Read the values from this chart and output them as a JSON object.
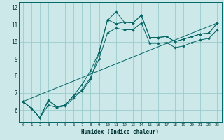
{
  "xlabel": "Humidex (Indice chaleur)",
  "background_color": "#cce8e8",
  "grid_color": "#99cccc",
  "line_color": "#006666",
  "xlim": [
    -0.5,
    23.5
  ],
  "ylim": [
    5.3,
    12.3
  ],
  "x_ticks": [
    0,
    1,
    2,
    3,
    4,
    5,
    6,
    7,
    8,
    9,
    10,
    11,
    12,
    13,
    14,
    15,
    16,
    17,
    18,
    19,
    20,
    21,
    22,
    23
  ],
  "y_ticks": [
    6,
    7,
    8,
    9,
    10,
    11,
    12
  ],
  "line1": [
    6.5,
    6.1,
    5.55,
    6.6,
    6.2,
    6.3,
    6.85,
    7.5,
    8.3,
    9.4,
    11.3,
    11.05,
    11.15,
    11.1,
    11.55,
    10.25,
    10.25,
    10.3,
    10.0,
    10.15,
    10.3,
    10.45,
    10.5,
    11.1
  ],
  "line2": [
    6.5,
    6.1,
    5.55,
    6.55,
    6.2,
    6.3,
    6.85,
    7.1,
    7.8,
    9.35,
    11.25,
    11.75,
    11.15,
    11.1,
    11.55,
    10.25,
    10.25,
    10.3,
    10.0,
    10.15,
    10.3,
    10.45,
    10.5,
    11.1
  ],
  "line3": [
    6.5,
    6.1,
    5.55,
    6.3,
    6.15,
    6.25,
    6.7,
    7.2,
    7.9,
    9.0,
    10.5,
    10.8,
    10.7,
    10.7,
    11.1,
    9.9,
    9.9,
    9.95,
    9.65,
    9.75,
    9.95,
    10.1,
    10.2,
    10.7
  ],
  "line4_x": [
    0,
    23
  ],
  "line4_y": [
    6.5,
    11.1
  ]
}
